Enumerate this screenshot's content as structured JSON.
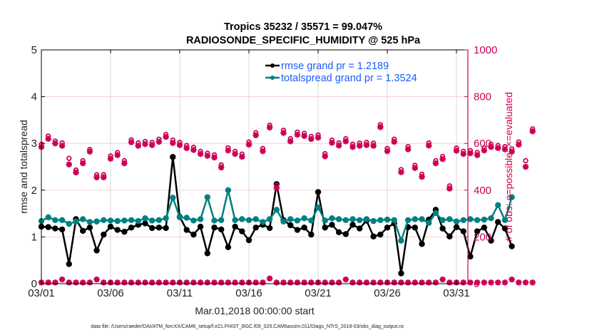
{
  "chart_data": {
    "type": "line",
    "title": "Tropics 35232 / 35571 = 99.047%",
    "subtitle": "RADIOSONDE_SPECIFIC_HUMIDITY @ 525 hPa",
    "xlabel": "Mar.01,2018 00:00:00 start",
    "ylabel": "rmse and totalspread",
    "y2label": "# of obs: o=possible; ×=evaluated",
    "footnote": "data file: /Users/raeder/DAI/ATM_forcXX/CAM6_setup/f.e21.FHIST_BGC.f09_025.CAM6assim.011/Diags_NTrS_2018-03/obs_diag_output.nc",
    "xlim_days": [
      0,
      31.2
    ],
    "x_step_days": 0.5,
    "x_ticks": [
      {
        "day": 0,
        "label": "03/01"
      },
      {
        "day": 5,
        "label": "03/06"
      },
      {
        "day": 10,
        "label": "03/11"
      },
      {
        "day": 15,
        "label": "03/16"
      },
      {
        "day": 20,
        "label": "03/21"
      },
      {
        "day": 25,
        "label": "03/26"
      },
      {
        "day": 30,
        "label": "03/31"
      }
    ],
    "ylim": [
      0,
      5
    ],
    "y_ticks": [
      "0",
      "1",
      "2",
      "3",
      "4",
      "5"
    ],
    "y2lim": [
      0,
      1000
    ],
    "y2_ticks": [
      "0",
      "200",
      "400",
      "600",
      "800",
      "1000"
    ],
    "grid": true,
    "legend_position": "top-right",
    "legend": [
      {
        "label": "rmse grand pr = 1.2189",
        "color": "#000000"
      },
      {
        "label": "totalspread grand pr = 1.3524",
        "color": "#008080"
      }
    ],
    "series": [
      {
        "name": "rmse",
        "axis": "left",
        "color": "#000000",
        "values": [
          1.22,
          1.21,
          1.18,
          1.16,
          0.42,
          1.38,
          1.13,
          1.2,
          0.71,
          1.05,
          1.22,
          1.15,
          1.11,
          1.2,
          1.26,
          1.29,
          1.19,
          1.2,
          1.19,
          2.71,
          1.43,
          1.15,
          1.05,
          1.22,
          0.65,
          1.2,
          1.16,
          0.78,
          1.22,
          1.12,
          0.93,
          1.2,
          1.26,
          1.19,
          2.13,
          1.36,
          1.25,
          1.15,
          1.2,
          1.05,
          1.96,
          1.2,
          1.26,
          1.1,
          1.06,
          1.26,
          1.18,
          1.35,
          1.01,
          1.05,
          1.2,
          1.29,
          0.22,
          1.21,
          1.2,
          0.85,
          1.37,
          1.58,
          1.18,
          1.01,
          1.21,
          1.12,
          0.58,
          1.12,
          1.2,
          0.92,
          1.32,
          1.18,
          0.8
        ]
      },
      {
        "name": "totalspread",
        "axis": "left",
        "color": "#008080",
        "values": [
          1.34,
          1.42,
          1.36,
          1.36,
          1.28,
          1.33,
          1.38,
          1.32,
          1.33,
          1.36,
          1.35,
          1.34,
          1.35,
          1.36,
          1.34,
          1.4,
          1.35,
          1.36,
          1.4,
          1.84,
          1.42,
          1.41,
          1.35,
          1.38,
          1.85,
          1.35,
          1.36,
          2.0,
          1.36,
          1.38,
          1.36,
          1.38,
          1.32,
          1.38,
          1.58,
          1.33,
          1.38,
          1.35,
          1.4,
          1.35,
          1.63,
          1.35,
          1.4,
          1.38,
          1.36,
          1.38,
          1.36,
          1.38,
          1.34,
          1.36,
          1.37,
          1.36,
          0.92,
          1.36,
          1.38,
          1.38,
          1.3,
          1.51,
          1.36,
          1.38,
          1.33,
          1.36,
          1.38,
          1.36,
          1.37,
          1.4,
          1.68,
          1.36,
          1.85
        ]
      },
      {
        "name": "obs_possible",
        "axis": "right",
        "color": "#cc0055",
        "marker": "o",
        "values": [
          590,
          625,
          604,
          596,
          530,
          480,
          520,
          568,
          460,
          460,
          540,
          555,
          520,
          609,
          596,
          602,
          598,
          612,
          632,
          608,
          598,
          585,
          577,
          560,
          552,
          545,
          502,
          575,
          560,
          548,
          600,
          640,
          572,
          672,
          415,
          650,
          614,
          642,
          637,
          624,
          630,
          550,
          608,
          596,
          614,
          590,
          595,
          598,
          595,
          674,
          572,
          612,
          482,
          580,
          500,
          462,
          596,
          520,
          538,
          412,
          574,
          560,
          563,
          555,
          575,
          590,
          585,
          580,
          570,
          600,
          520,
          656
        ]
      },
      {
        "name": "obs_evaluated",
        "axis": "right",
        "color": "#cc0055",
        "marker": "x",
        "values": [
          585,
          620,
          600,
          590,
          510,
          476,
          515,
          565,
          455,
          455,
          535,
          550,
          515,
          605,
          590,
          597,
          593,
          607,
          628,
          602,
          593,
          580,
          572,
          555,
          547,
          540,
          497,
          570,
          555,
          543,
          595,
          635,
          567,
          668,
          410,
          645,
          609,
          637,
          632,
          619,
          625,
          545,
          603,
          591,
          609,
          585,
          590,
          593,
          590,
          670,
          567,
          607,
          477,
          575,
          495,
          457,
          591,
          515,
          533,
          407,
          569,
          555,
          558,
          550,
          570,
          585,
          580,
          575,
          565,
          595,
          500,
          652
        ]
      },
      {
        "name": "obs_possible_low",
        "axis": "right",
        "color": "#cc0055",
        "marker": "+",
        "values": [
          5,
          5,
          5,
          18,
          5,
          5,
          5,
          5,
          18,
          5,
          5,
          5,
          5,
          5,
          5,
          5,
          5,
          5,
          5,
          5,
          5,
          5,
          5,
          5,
          5,
          5,
          5,
          5,
          5,
          5,
          5,
          5,
          5,
          22,
          5,
          5,
          5,
          5,
          5,
          5,
          5,
          5,
          5,
          5,
          18,
          5,
          5,
          5,
          5,
          5,
          5,
          5,
          5,
          5,
          5,
          5,
          5,
          5,
          18,
          5,
          5,
          5,
          5,
          5,
          5,
          5,
          5,
          5,
          18,
          5,
          5,
          5
        ]
      }
    ]
  }
}
